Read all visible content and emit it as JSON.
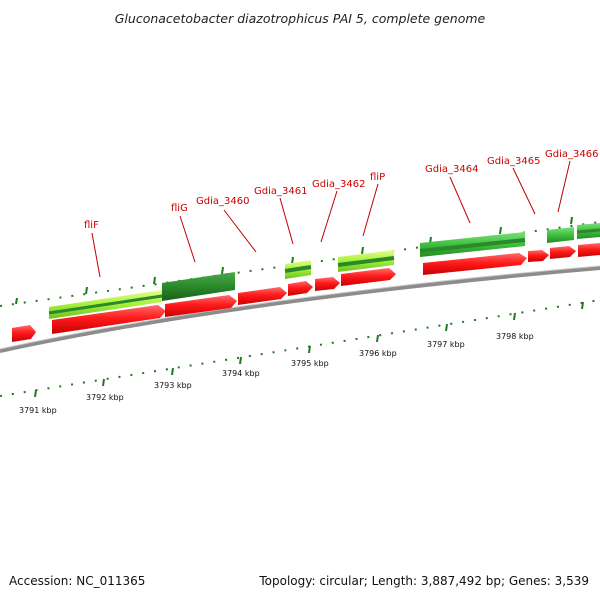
{
  "header": {
    "title": "Gluconacetobacter diazotrophicus PAI 5, complete genome"
  },
  "footer": {
    "accession": "Accession: NC_011365",
    "topology": "Topology: circular; Length: 3,887,492 bp; Genes: 3,539"
  },
  "colors": {
    "backbone": "#8c8c8c",
    "cds_forward": "#ff1a1a",
    "cds_reverse": "#ff1a1a",
    "gene_light": "#a6f03c",
    "gene_dark": "#2a8a2a",
    "gene_green": "#3fbf3f",
    "label": "#cc0000",
    "tick": "#1f7a1f"
  },
  "map": {
    "kbp_labels": [
      "3791 kbp",
      "3792 kbp",
      "3793 kbp",
      "3794 kbp",
      "3795 kbp",
      "3796 kbp",
      "3797 kbp",
      "3798 kbp"
    ],
    "gene_labels": [
      "fliF",
      "fliG",
      "Gdia_3460",
      "Gdia_3461",
      "Gdia_3462",
      "fliP",
      "Gdia_3464",
      "Gdia_3465",
      "Gdia_3466"
    ]
  }
}
